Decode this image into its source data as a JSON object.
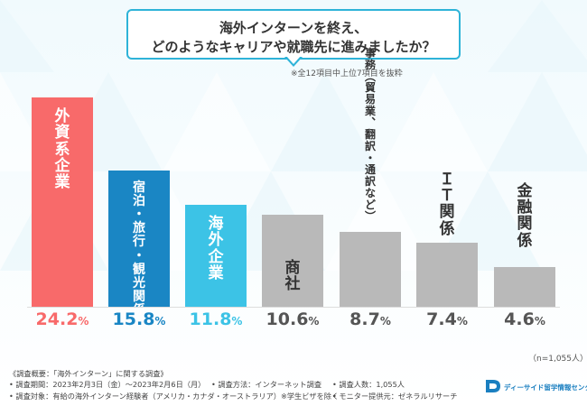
{
  "title": {
    "line1": "海外インターンを終え、",
    "line2": "どのようなキャリアや就職先に進みましたか？"
  },
  "note": "※全12項目中上位7項目を抜粋",
  "sample_size": "（n=1,055人）",
  "chart_data": {
    "type": "bar",
    "title": "海外インターンを終え、どのようなキャリアや就職先に進みましたか？",
    "unit": "%",
    "ylim": [
      0,
      24.2
    ],
    "categories": [
      {
        "label": "外資系企業",
        "value": 24.2,
        "display": "24.2",
        "color": "#f86a6a",
        "text_color": "#ffffff",
        "value_color": "#f86a6a"
      },
      {
        "label": "宿泊・旅行・観光関係",
        "value": 15.8,
        "display": "15.8",
        "color": "#1a86c4",
        "text_color": "#ffffff",
        "value_color": "#1a86c4"
      },
      {
        "label": "海外企業",
        "value": 11.8,
        "display": "11.8",
        "color": "#3cc3e6",
        "text_color": "#ffffff",
        "value_color": "#3cc3e6"
      },
      {
        "label": "商社",
        "value": 10.6,
        "display": "10.6",
        "color": "#b9b9b9",
        "text_color": "#333333",
        "value_color": "#555555"
      },
      {
        "label": "事務（貿易業、翻訳・通訳など）",
        "value": 8.7,
        "display": "8.7",
        "color": "#b9b9b9",
        "text_color": "#333333",
        "value_color": "#555555"
      },
      {
        "label": "ＩＴ関係",
        "value": 7.4,
        "display": "7.4",
        "color": "#b9b9b9",
        "text_color": "#333333",
        "value_color": "#555555"
      },
      {
        "label": "金融関係",
        "value": 4.6,
        "display": "4.6",
        "color": "#b9b9b9",
        "text_color": "#333333",
        "value_color": "#555555"
      }
    ]
  },
  "footer": {
    "overview": "《調査概要：「海外インターン」に関する調査》",
    "period": "• 調査期間：2023年2月3日（金）～2023年2月6日（月）",
    "method": "• 調査方法：インターネット調査",
    "respondents": "• 調査人数：1,055人",
    "target": "• 調査対象：有給の海外インターン経験者（アメリカ・カナダ・オーストラリア）※学生ビザを除く",
    "provider": "• モニター提供元：ゼネラルリサーチ"
  },
  "logo": {
    "text": "ディーサイド留学情報センター",
    "color": "#1a7fc0"
  }
}
